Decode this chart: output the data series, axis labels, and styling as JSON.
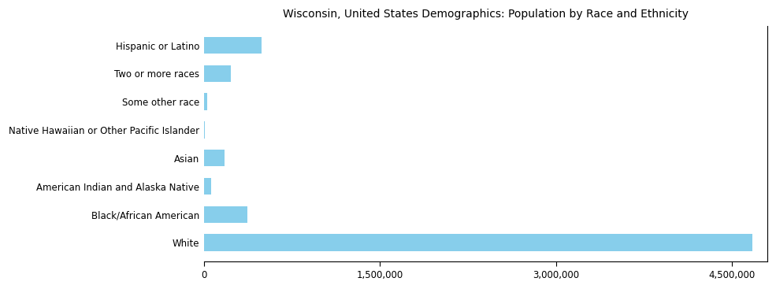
{
  "title": "Wisconsin, United States Demographics: Population by Race and Ethnicity",
  "categories": [
    "White",
    "Black/African American",
    "American Indian and Alaska Native",
    "Asian",
    "Native Hawaiian or Other Pacific Islander",
    "Some other race",
    "Two or more races",
    "Hispanic or Latino"
  ],
  "values": [
    4670000,
    370000,
    60000,
    175000,
    5000,
    30000,
    230000,
    490000
  ],
  "bar_color": "#87CEEB",
  "xlim": [
    0,
    4800000
  ],
  "xticks": [
    0,
    1500000,
    3000000,
    4500000
  ],
  "xtick_labels": [
    "0",
    "1,500,000",
    "3,000,000",
    "4,500,000"
  ],
  "background_color": "#ffffff",
  "title_fontsize": 10,
  "label_fontsize": 8.5,
  "tick_fontsize": 8.5
}
